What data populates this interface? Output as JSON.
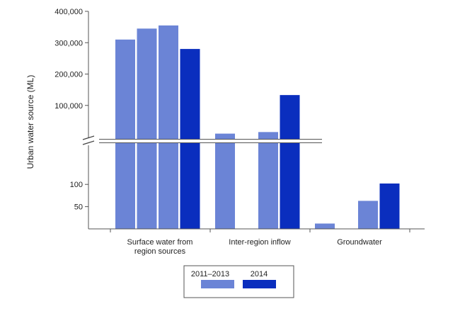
{
  "chart_data": {
    "type": "bar",
    "title": "",
    "ylabel": "Urban water source (ML)",
    "xlabel": "",
    "axis_break": true,
    "lower_axis": {
      "ylim": [
        0,
        180
      ],
      "ticks": [
        50,
        100
      ],
      "tick_labels": [
        "50",
        "100"
      ]
    },
    "upper_axis": {
      "ylim": [
        0,
        400000
      ],
      "ticks": [
        100000,
        200000,
        300000,
        400000
      ],
      "tick_labels": [
        "100,000",
        "200,000",
        "300,000",
        "400,000"
      ]
    },
    "categories": [
      {
        "lines": [
          "Surface water from",
          "region sources"
        ]
      },
      {
        "lines": [
          "Inter-region inflow"
        ]
      },
      {
        "lines": [
          "Groundwater"
        ]
      }
    ],
    "series": [
      {
        "name": "2011",
        "legend": "2011–2013",
        "color": "#6b84d6",
        "values": [
          310000,
          10000,
          12
        ]
      },
      {
        "name": "2012",
        "legend": "2011–2013",
        "color": "#6b84d6",
        "values": [
          345000,
          0,
          0
        ]
      },
      {
        "name": "2013",
        "legend": "2011–2013",
        "color": "#6b84d6",
        "values": [
          355000,
          15000,
          63
        ]
      },
      {
        "name": "2014",
        "legend": "2014",
        "color": "#0a2ebe",
        "values": [
          280000,
          133000,
          102
        ]
      }
    ],
    "legend": {
      "placement": "bottom-center",
      "entries": [
        {
          "label": "2011–2013",
          "color": "#6b84d6"
        },
        {
          "label": "2014",
          "color": "#0a2ebe"
        }
      ]
    },
    "grid": false
  }
}
